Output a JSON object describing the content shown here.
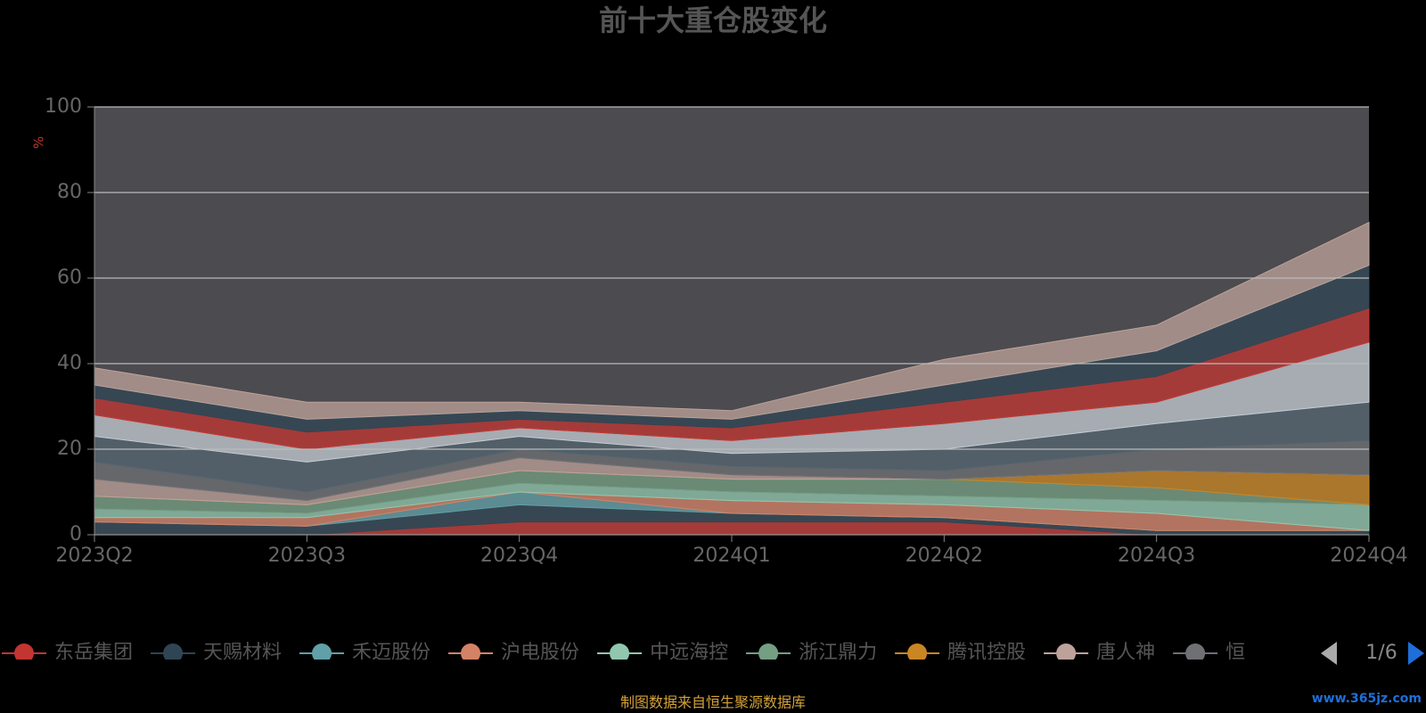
{
  "chart_data": {
    "type": "stacked-area",
    "title": "前十大重仓股变化",
    "y_label": "%",
    "x": [
      "2023Q2",
      "2023Q3",
      "2023Q4",
      "2024Q1",
      "2024Q2",
      "2024Q3",
      "2024Q4"
    ],
    "ylim": [
      0,
      100
    ],
    "yticks": [
      0,
      20,
      40,
      60,
      80,
      100
    ],
    "grid": true,
    "series": [
      {
        "name": "东岳集团",
        "color": "#c23531",
        "values": [
          0,
          0,
          3,
          3,
          3,
          0,
          0
        ]
      },
      {
        "name": "天赐材料",
        "color": "#2f4554",
        "values": [
          3,
          2,
          4,
          2,
          1,
          1,
          1
        ]
      },
      {
        "name": "禾迈股份",
        "color": "#61a0a8",
        "values": [
          0,
          0,
          3,
          0,
          0,
          0,
          0
        ]
      },
      {
        "name": "沪电股份",
        "color": "#d48265",
        "values": [
          1,
          2,
          0,
          3,
          3,
          4,
          0
        ]
      },
      {
        "name": "中远海控",
        "color": "#91c7ae",
        "values": [
          2,
          1,
          2,
          2,
          2,
          3,
          6
        ]
      },
      {
        "name": "浙江鼎力",
        "color": "#749f83",
        "values": [
          3,
          2,
          3,
          3,
          4,
          3,
          0
        ]
      },
      {
        "name": "腾讯控股",
        "color": "#ca8622",
        "values": [
          0,
          0,
          0,
          0,
          0,
          4,
          7
        ]
      },
      {
        "name": "唐人神",
        "color": "#bda29a",
        "values": [
          4,
          1,
          3,
          1,
          0,
          0,
          0
        ]
      },
      {
        "name": "恒",
        "color": "#6e7074",
        "values": [
          4,
          2,
          2,
          2,
          2,
          5,
          8
        ]
      },
      {
        "color": "#546570",
        "values": [
          6,
          7,
          3,
          3,
          5,
          6,
          9
        ]
      },
      {
        "color": "#c4ccd3",
        "values": [
          5,
          3,
          2,
          3,
          6,
          5,
          14
        ]
      },
      {
        "color": "#c23531",
        "values": [
          4,
          4,
          2,
          3,
          5,
          6,
          8
        ]
      },
      {
        "color": "#2f4554",
        "values": [
          3,
          3,
          2,
          2,
          4,
          6,
          10
        ]
      },
      {
        "color": "#bda29a",
        "values": [
          4,
          4,
          2,
          2,
          6,
          6,
          10
        ]
      }
    ],
    "legend_page": "1/6",
    "source": "制图数据来自恒生聚源数据库",
    "watermark": "www.365jz.com"
  }
}
